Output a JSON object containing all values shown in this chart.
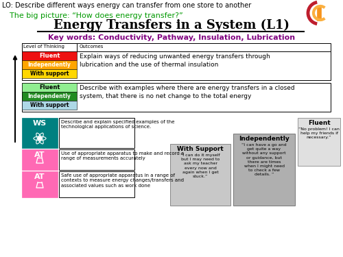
{
  "lo_text": "LO: Describe different ways energy can transfer from one store to another",
  "big_picture": "The big picture: “How does energy transfer?”",
  "title": "Energy Transfers in a System (L1)",
  "key_words": "Key words: Conductivity, Pathway, Insulation, Lubrication",
  "header_col1": "Level of Thinking",
  "header_col2": "Outcomes",
  "row1_fluent": "Fluent",
  "row1_independently": "Independently",
  "row1_with_support": "With support",
  "row1_text": "Explain ways of reducing unwanted energy transfers through\nlubrication and the use of thermal insulation",
  "row2_fluent": "Fluent",
  "row2_independently": "Independently",
  "row2_with_support": "With support",
  "row2_text": "Describe with examples where there are energy transfers in a closed\nsystem, that there is no net change to the total energy",
  "ws_label": "WS",
  "ws_text": "Describe and explain specified examples of the\ntechnological applications of science.",
  "at1_label": "AT",
  "at1_text": "Use of appropriate apparatus to make and record a\nrange of measurements accurately",
  "at2_label": "AT",
  "at2_text": "Safe use of appropriate apparatus in a range of\ncontexts to measure energy changes/transfers and\nassociated values such as work done",
  "support_box_label": "With Support",
  "support_box_text": "“I can do it myself\nbut I may need to\nask my teacher\nevery now and\nagain when I get\nstuck.”",
  "independently_box_label": "Independently",
  "independently_box_text": "“I can have a go and\nget quite a way\nwithout any support\nor guidance, but\nthere are times\nwhen I might need\nto check a few\ndetails. ”",
  "fluent_box_label": "Fluent",
  "fluent_box_text": "“No problem! I can\nhelp my friends if\nnecessary.”",
  "color_red": "#EE1111",
  "color_orange": "#FFA500",
  "color_yellow": "#FFD700",
  "color_light_green": "#90EE90",
  "color_green": "#228B22",
  "color_light_blue": "#ADD8E6",
  "color_teal": "#008080",
  "color_pink": "#FF69B4",
  "color_purple": "#800080",
  "color_black": "#000000",
  "color_white": "#FFFFFF",
  "color_logo_orange": "#F7941D",
  "color_logo_red": "#BE1E2D",
  "color_logo_yellow": "#FBB040",
  "color_green_text": "#009900",
  "color_gray1": "#C8C8C8",
  "color_gray2": "#AFAFAF",
  "color_gray3": "#E0E0E0"
}
